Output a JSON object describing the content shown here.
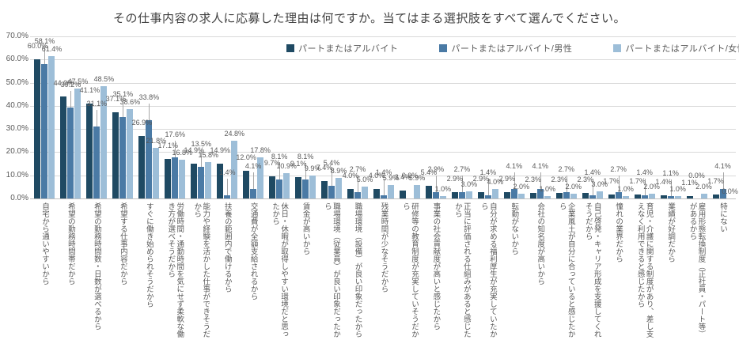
{
  "title": "その仕事内容の求人に応募した理由は何ですか。当てはまる選択肢をすべて選んでください。",
  "y_axis": {
    "tick_labels": [
      "70.0%",
      "60.0%",
      "50.0%",
      "40.0%",
      "30.0%",
      "20.0%",
      "10.0%",
      "0.0%"
    ]
  },
  "chart_data": {
    "type": "bar",
    "title": "その仕事内容の求人に応募した理由は何ですか。当てはまる選択肢をすべて選んでください。",
    "xlabel": "",
    "ylabel": "",
    "ylim": [
      0,
      70
    ],
    "grid": true,
    "legend_position": "top",
    "value_label_format": "percent_one_decimal",
    "categories": [
      "自宅から通いやすいから",
      "希望の勤務時間帯だから",
      "希望の勤務時間数・日数が選べるから",
      "希望する仕事内容だから",
      "すぐに働き始められそうだから",
      "労働時間・通勤時間を気にせず柔軟な働き方が選べそうだから",
      "能力や経験を活かした仕事ができそうだから",
      "扶養の範囲内で働けるから",
      "交通費が全額支給されるから",
      "休日・休暇が取得しやすい環境だと思ったから",
      "賃金が高いから",
      "職場環境（従業員）が良い印象だったから",
      "職場環境（設備）が良い印象だったから",
      "残業時間が少なそうだから",
      "研修等の教育制度が充実していそうだから",
      "事業の社会貢献度が高いと感じたから",
      "正当に評価される仕組みがあると感じたから",
      "自分が求める福利厚生が充実していたから",
      "転勤がないから",
      "会社の知名度が高いから",
      "企業風土が自分に合っていると感じたから",
      "自己啓発・キャリア形成を支援してくれそうだから",
      "憧れの業界だから",
      "育児・介護に関する制度があり、差し支えなく利用できると感じたから",
      "業績が好調だから",
      "雇用形態転換制度（正社員・パート等）があるから",
      "特にない"
    ],
    "series": [
      {
        "name": "パートまたはアルバイト",
        "color": "#1f4a63",
        "values": [
          60.0,
          44.0,
          41.1,
          37.1,
          26.9,
          17.1,
          14.9,
          14.9,
          12.0,
          9.7,
          9.1,
          7.4,
          4.0,
          4.0,
          3.4,
          5.4,
          2.9,
          2.9,
          2.9,
          2.3,
          2.3,
          2.3,
          1.7,
          1.7,
          1.4,
          1.1,
          1.7
        ]
      },
      {
        "name": "パートまたはアルバイト/男性",
        "color": "#4a7aa5",
        "values": [
          58.1,
          39.2,
          31.1,
          35.1,
          33.8,
          17.6,
          13.5,
          1.4,
          4.1,
          8.1,
          8.1,
          5.4,
          2.7,
          1.4,
          0.0,
          2.9,
          2.7,
          1.4,
          4.1,
          4.1,
          2.7,
          1.4,
          2.7,
          1.4,
          1.1,
          0.0,
          4.1
        ]
      },
      {
        "name": "パートまたはアルバイト/女性",
        "color": "#9dbed8",
        "values": [
          61.4,
          47.5,
          48.5,
          38.6,
          21.8,
          16.8,
          15.8,
          24.8,
          17.8,
          10.9,
          9.9,
          8.9,
          5.0,
          5.9,
          5.9,
          1.0,
          3.0,
          4.0,
          2.0,
          1.0,
          2.0,
          3.0,
          1.0,
          2.0,
          1.0,
          2.0,
          0.0
        ]
      }
    ]
  }
}
